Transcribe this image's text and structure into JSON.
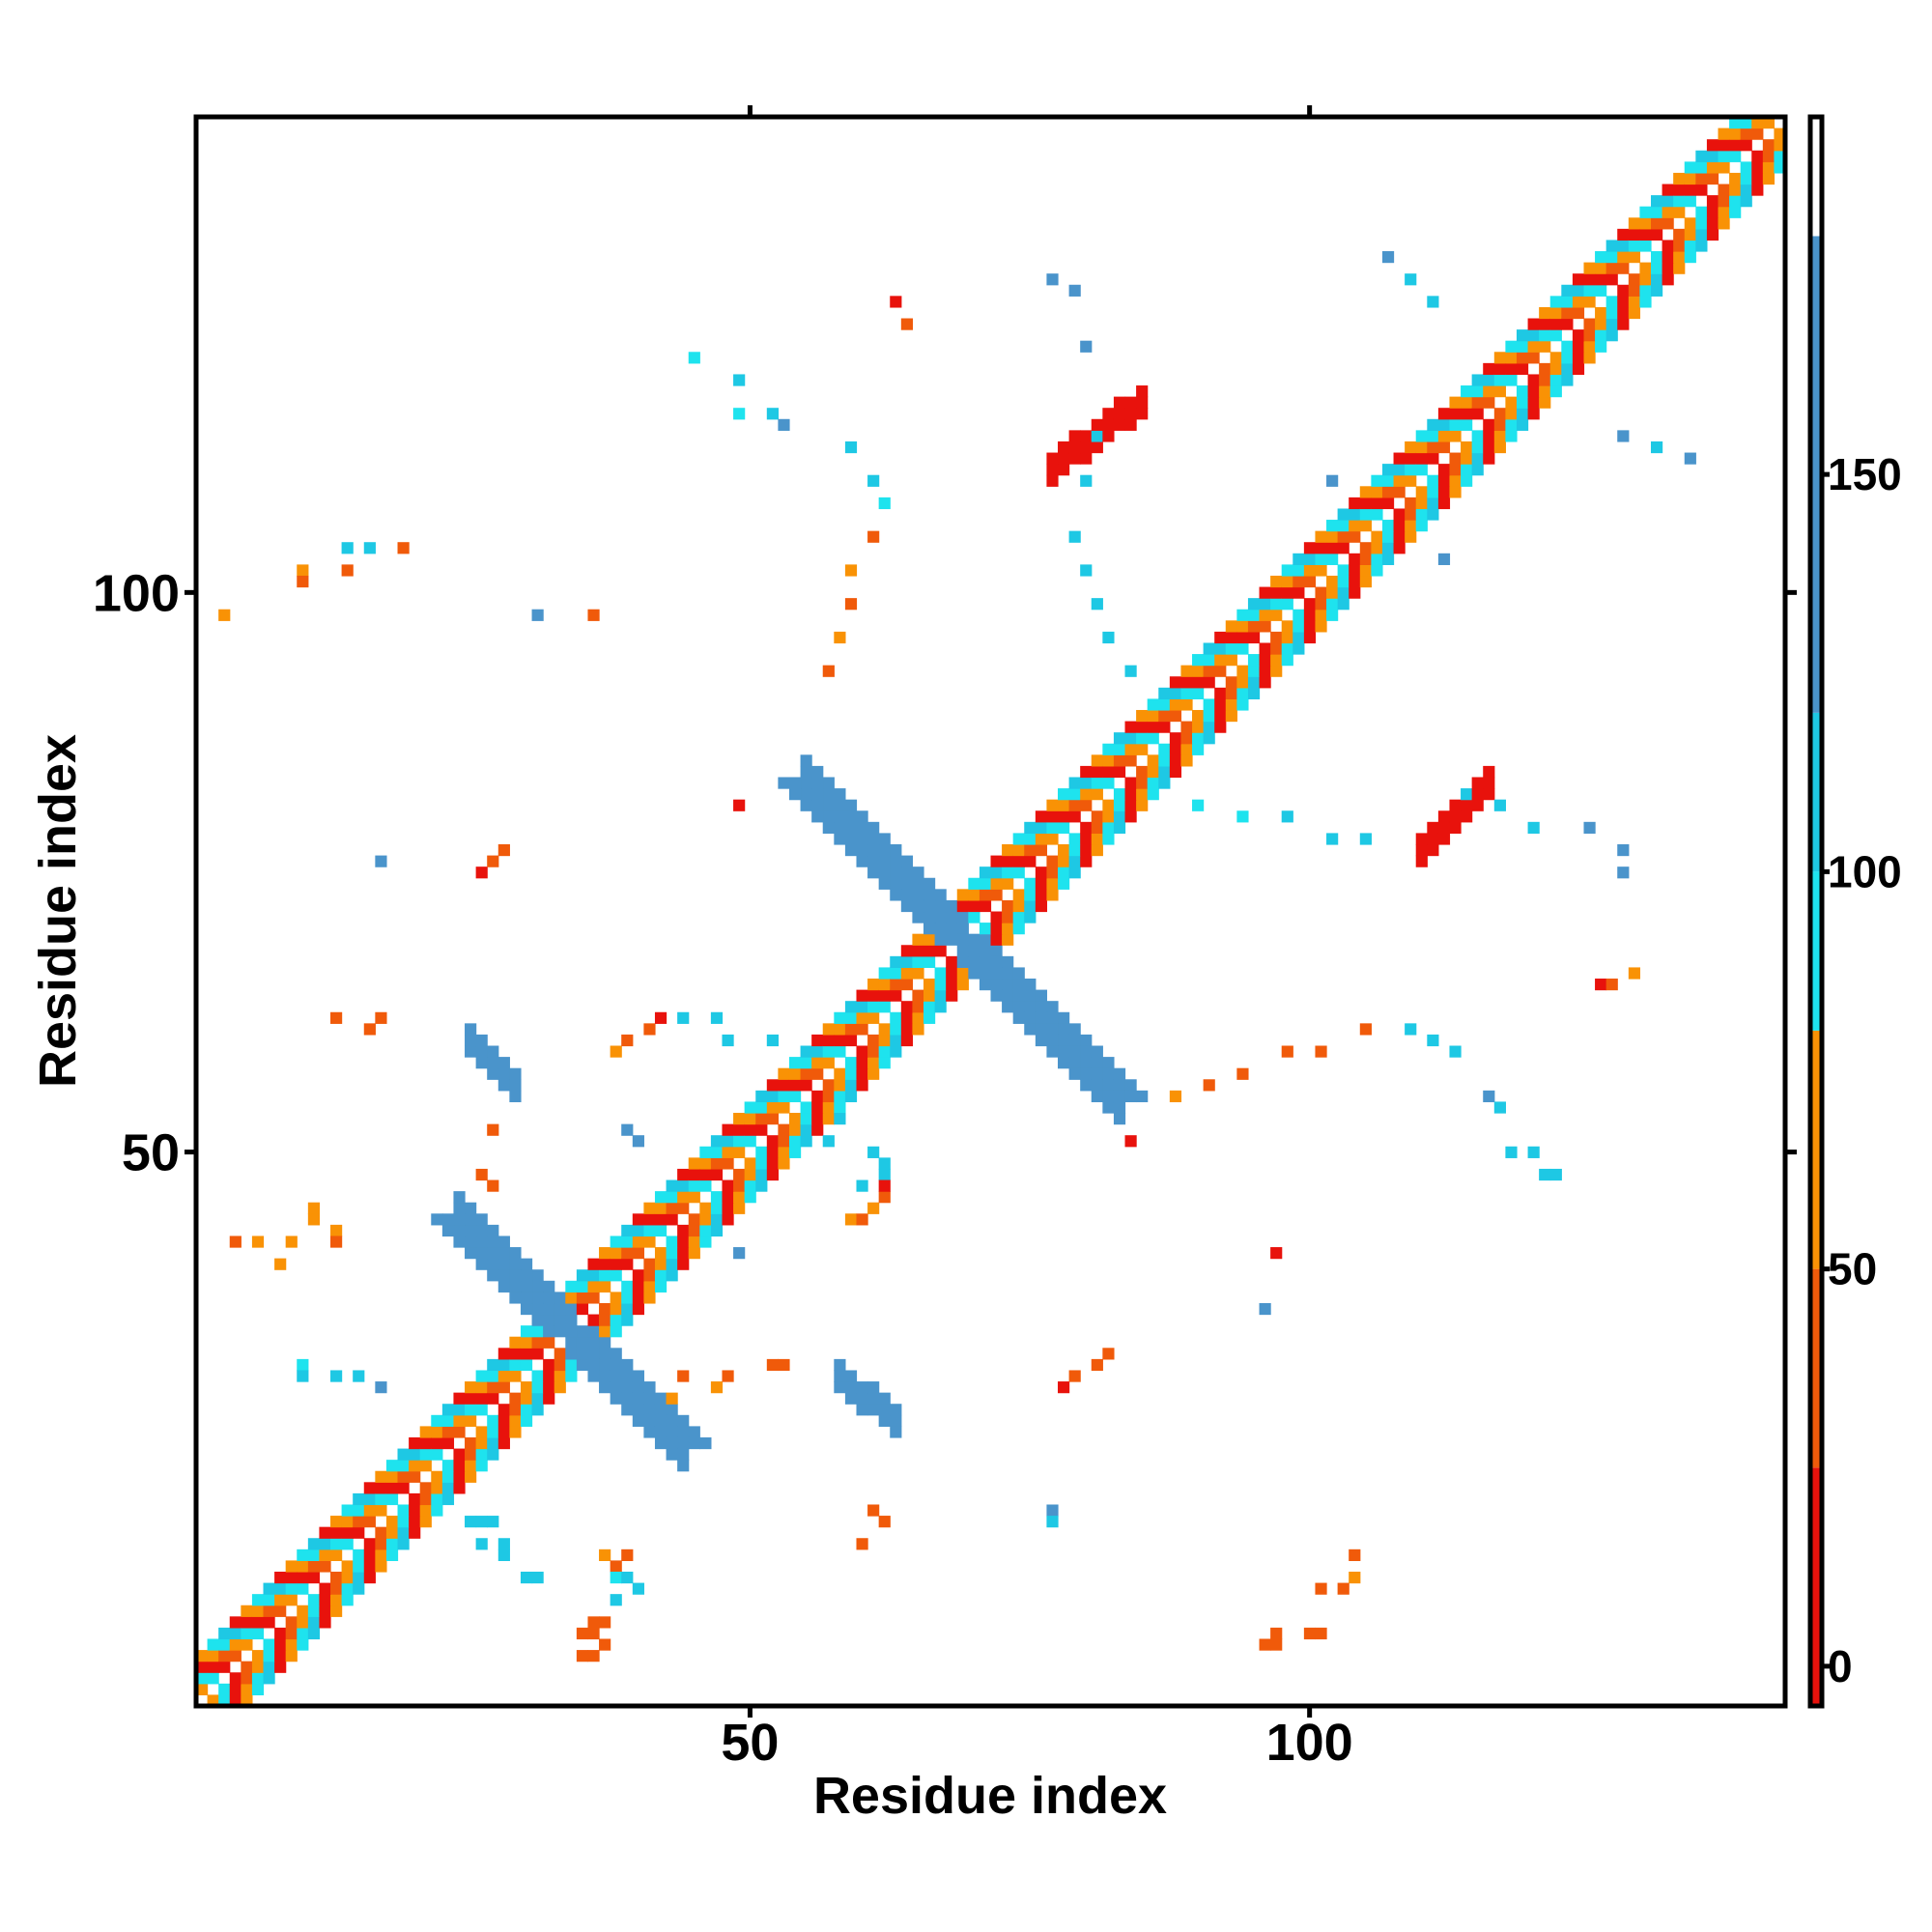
{
  "chart_data": {
    "type": "heatmap",
    "title": "",
    "xlabel": "Residue index",
    "ylabel": "Residue index",
    "xlim": [
      1,
      142
    ],
    "ylim": [
      1,
      142
    ],
    "x_ticks": [
      50,
      100
    ],
    "y_ticks": [
      50,
      100
    ],
    "grid": false,
    "colorbar": {
      "position": "right",
      "ticks": [
        0,
        50,
        100,
        150
      ],
      "range": [
        -5,
        195
      ],
      "bands": [
        {
          "from": -5,
          "to": 25,
          "color": "#e8120c"
        },
        {
          "from": 25,
          "to": 50,
          "color": "#f05a0a"
        },
        {
          "from": 50,
          "to": 80,
          "color": "#f99205"
        },
        {
          "from": 80,
          "to": 100,
          "color": "#1ee3ee"
        },
        {
          "from": 100,
          "to": 120,
          "color": "#1ec8e4"
        },
        {
          "from": 120,
          "to": 180,
          "color": "#4a94cb"
        },
        {
          "from": 180,
          "to": 195,
          "color": "#ffffff"
        }
      ]
    },
    "features": {
      "diagonal_contacts": {
        "from": 1,
        "to": 142,
        "value_pattern": [
          10,
          40,
          70,
          95
        ]
      },
      "antiparallel_bands": [
        {
          "start_i": 34,
          "start_j": 34,
          "length": 10,
          "value": 150
        },
        {
          "start_i": 69,
          "start_j": 69,
          "length": 14,
          "value": 155
        }
      ],
      "offdiagonal_bands": [
        {
          "i_from": 25,
          "i_to": 29,
          "j_from": 60,
          "j_to": 56,
          "value": 150
        },
        {
          "i_from": 58,
          "i_to": 63,
          "j_from": 30,
          "j_to": 26,
          "value": 150
        },
        {
          "i_from": 77,
          "i_to": 85,
          "j_from": 111,
          "j_to": 117,
          "value": 10
        },
        {
          "i_from": 110,
          "i_to": 116,
          "j_from": 77,
          "j_to": 83,
          "value": 10
        }
      ],
      "scattered_contacts": [
        [
          63,
          126,
          20
        ],
        [
          64,
          124,
          45
        ],
        [
          77,
          128,
          150
        ],
        [
          79,
          127,
          150
        ],
        [
          80,
          122,
          150
        ],
        [
          45,
          121,
          95
        ],
        [
          49,
          119,
          100
        ],
        [
          49,
          116,
          95
        ],
        [
          52,
          116,
          110
        ],
        [
          53,
          115,
          150
        ],
        [
          59,
          113,
          100
        ],
        [
          61,
          110,
          100
        ],
        [
          62,
          108,
          95
        ],
        [
          61,
          105,
          45
        ],
        [
          59,
          102,
          50
        ],
        [
          59,
          99,
          45
        ],
        [
          58,
          96,
          70
        ],
        [
          57,
          93,
          45
        ],
        [
          81,
          114,
          100
        ],
        [
          80,
          110,
          100
        ],
        [
          79,
          105,
          110
        ],
        [
          80,
          102,
          110
        ],
        [
          81,
          99,
          110
        ],
        [
          82,
          96,
          110
        ],
        [
          84,
          93,
          100
        ],
        [
          107,
          130,
          150
        ],
        [
          109,
          128,
          110
        ],
        [
          111,
          126,
          100
        ],
        [
          128,
          114,
          150
        ],
        [
          131,
          113,
          110
        ],
        [
          134,
          112,
          150
        ],
        [
          102,
          110,
          150
        ],
        [
          112,
          103,
          150
        ],
        [
          14,
          104,
          100
        ],
        [
          16,
          104,
          110
        ],
        [
          19,
          104,
          45
        ],
        [
          10,
          102,
          50
        ],
        [
          10,
          101,
          45
        ],
        [
          3,
          98,
          50
        ],
        [
          14,
          102,
          45
        ],
        [
          31,
          98,
          150
        ],
        [
          36,
          98,
          30
        ],
        [
          26,
          75,
          20
        ],
        [
          27,
          76,
          30
        ],
        [
          28,
          77,
          40
        ],
        [
          17,
          76,
          150
        ],
        [
          49,
          81,
          20
        ],
        [
          90,
          81,
          95
        ],
        [
          94,
          80,
          95
        ],
        [
          98,
          80,
          100
        ],
        [
          102,
          78,
          110
        ],
        [
          105,
          78,
          110
        ],
        [
          128,
          77,
          150
        ],
        [
          128,
          75,
          150
        ],
        [
          114,
          82,
          110
        ],
        [
          117,
          81,
          110
        ],
        [
          120,
          79,
          110
        ],
        [
          125,
          79,
          150
        ],
        [
          126,
          65,
          20
        ],
        [
          129,
          66,
          50
        ],
        [
          127,
          65,
          45
        ],
        [
          13,
          62,
          45
        ],
        [
          17,
          62,
          45
        ],
        [
          16,
          61,
          45
        ],
        [
          38,
          59,
          50
        ],
        [
          39,
          60,
          45
        ],
        [
          41,
          61,
          40
        ],
        [
          42,
          62,
          20
        ],
        [
          44,
          62,
          100
        ],
        [
          47,
          62,
          110
        ],
        [
          48,
          60,
          100
        ],
        [
          52,
          60,
          110
        ],
        [
          88,
          55,
          50
        ],
        [
          91,
          56,
          45
        ],
        [
          94,
          57,
          45
        ],
        [
          98,
          59,
          45
        ],
        [
          101,
          59,
          45
        ],
        [
          105,
          61,
          40
        ],
        [
          109,
          61,
          100
        ],
        [
          111,
          60,
          110
        ],
        [
          113,
          59,
          110
        ],
        [
          116,
          55,
          150
        ],
        [
          117,
          54,
          100
        ],
        [
          118,
          50,
          100
        ],
        [
          120,
          50,
          110
        ],
        [
          122,
          48,
          110
        ],
        [
          121,
          48,
          100
        ],
        [
          27,
          52,
          40
        ],
        [
          27,
          47,
          45
        ],
        [
          26,
          48,
          40
        ],
        [
          40,
          51,
          150
        ],
        [
          39,
          52,
          150
        ],
        [
          58,
          53,
          100
        ],
        [
          57,
          51,
          100
        ],
        [
          61,
          50,
          100
        ],
        [
          62,
          49,
          100
        ],
        [
          62,
          48,
          110
        ],
        [
          60,
          47,
          100
        ],
        [
          59,
          44,
          50
        ],
        [
          60,
          44,
          45
        ],
        [
          61,
          45,
          50
        ],
        [
          62,
          46,
          40
        ],
        [
          62,
          47,
          20
        ],
        [
          49,
          41,
          150
        ],
        [
          84,
          51,
          20
        ],
        [
          96,
          36,
          150
        ],
        [
          97,
          41,
          20
        ],
        [
          4,
          42,
          45
        ],
        [
          6,
          42,
          50
        ],
        [
          9,
          42,
          70
        ],
        [
          8,
          40,
          50
        ],
        [
          11,
          44,
          70
        ],
        [
          11,
          45,
          50
        ],
        [
          13,
          43,
          50
        ],
        [
          13,
          42,
          45
        ],
        [
          10,
          31,
          95
        ],
        [
          10,
          30,
          100
        ],
        [
          13,
          30,
          110
        ],
        [
          15,
          30,
          110
        ],
        [
          17,
          29,
          150
        ],
        [
          44,
          30,
          45
        ],
        [
          47,
          29,
          50
        ],
        [
          48,
          30,
          40
        ],
        [
          43,
          28,
          70
        ],
        [
          52,
          31,
          40
        ],
        [
          53,
          31,
          45
        ],
        [
          78,
          29,
          20
        ],
        [
          79,
          30,
          30
        ],
        [
          81,
          31,
          40
        ],
        [
          82,
          32,
          45
        ],
        [
          61,
          18,
          45
        ],
        [
          62,
          17,
          45
        ],
        [
          60,
          15,
          45
        ],
        [
          77,
          18,
          150
        ],
        [
          77,
          17,
          100
        ],
        [
          25,
          17,
          100
        ],
        [
          26,
          17,
          100
        ],
        [
          27,
          17,
          100
        ],
        [
          26,
          15,
          100
        ],
        [
          28,
          15,
          110
        ],
        [
          28,
          14,
          100
        ],
        [
          30,
          12,
          100
        ],
        [
          31,
          12,
          100
        ],
        [
          37,
          14,
          50
        ],
        [
          39,
          14,
          45
        ],
        [
          38,
          13,
          45
        ],
        [
          38,
          12,
          95
        ],
        [
          39,
          12,
          100
        ],
        [
          40,
          11,
          100
        ],
        [
          38,
          10,
          110
        ],
        [
          37,
          8,
          45
        ],
        [
          36,
          7,
          45
        ],
        [
          35,
          7,
          40
        ],
        [
          36,
          8,
          45
        ],
        [
          37,
          6,
          45
        ],
        [
          36,
          5,
          40
        ],
        [
          35,
          5,
          45
        ],
        [
          104,
          14,
          40
        ],
        [
          103,
          11,
          45
        ],
        [
          104,
          12,
          70
        ],
        [
          101,
          11,
          40
        ],
        [
          97,
          7,
          45
        ],
        [
          97,
          6,
          40
        ],
        [
          96,
          6,
          45
        ],
        [
          100,
          7,
          40
        ],
        [
          101,
          7,
          45
        ]
      ]
    }
  }
}
